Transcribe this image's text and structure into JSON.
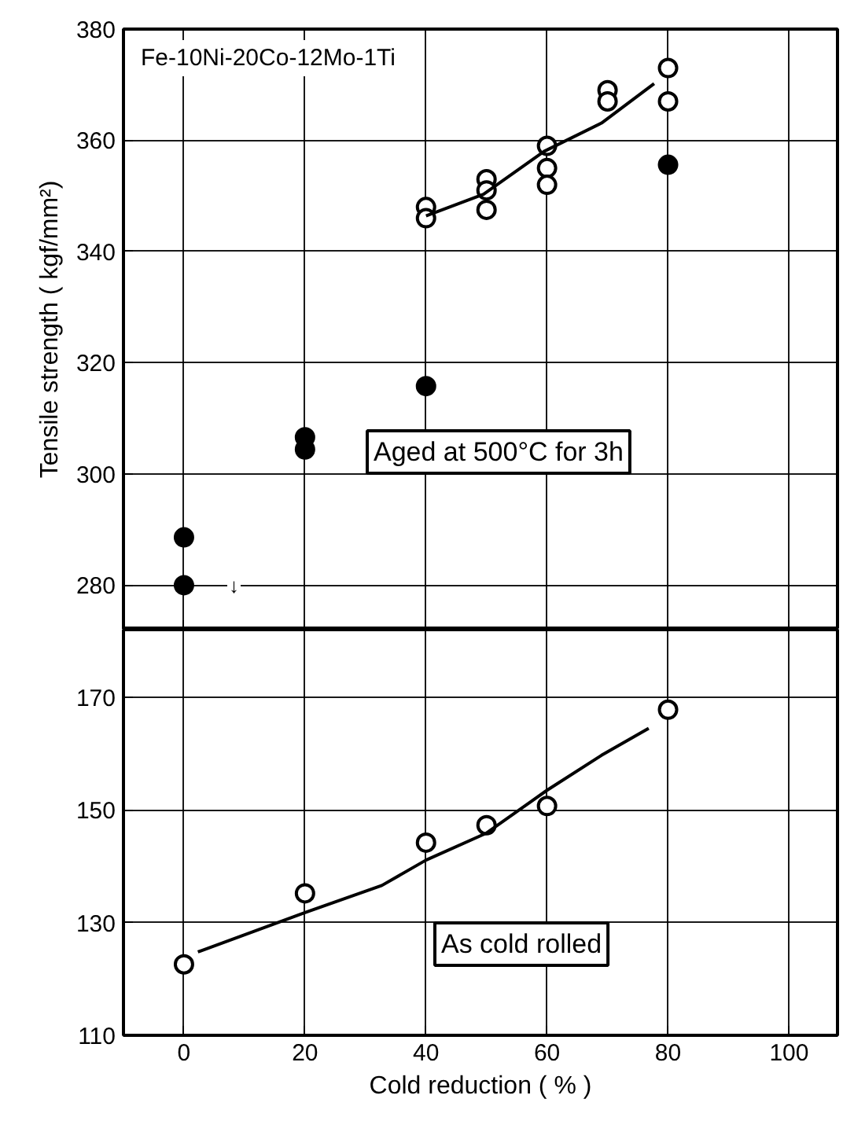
{
  "chart_data": [
    {
      "type": "scatter",
      "title": "Fe-10Ni-20Co-12Mo-1Ti",
      "ylabel": "Tensile strength ( kgf/mm²)",
      "xlim": [
        -10,
        108
      ],
      "xticks": [
        0,
        20,
        40,
        60,
        80,
        100
      ],
      "ylim": [
        272,
        380
      ],
      "yticks": [
        280,
        300,
        320,
        340,
        360,
        380
      ],
      "grid": true,
      "tick_labels": "y",
      "series": [
        {
          "color": "#ffffff",
          "marker": "circle",
          "x": [
            40,
            40,
            50,
            50,
            50,
            60,
            60,
            60,
            70,
            70,
            80,
            80
          ],
          "values": [
            348,
            346,
            353,
            351,
            347.5,
            359,
            355,
            352,
            369,
            367,
            373,
            367
          ]
        },
        {
          "color": "#000000",
          "marker": "circle",
          "x": [
            0,
            0,
            20,
            20,
            40,
            80
          ],
          "values": [
            288.6,
            280,
            306.6,
            304.4,
            315.8,
            355.6
          ]
        },
        {
          "type": "line",
          "marker": "none",
          "color": "#000000",
          "x": [
            40,
            49.5,
            59.5,
            69,
            77.7
          ],
          "values": [
            346.4,
            350.3,
            358,
            363.1,
            370.2
          ]
        }
      ],
      "annotations": [
        "Aged at 500°C for 3h",
        "↓"
      ]
    },
    {
      "type": "scatter",
      "xlabel": "Cold reduction ( % )",
      "xlim": [
        -10,
        108
      ],
      "xticks": [
        0,
        20,
        40,
        60,
        80,
        100
      ],
      "ylim": [
        110,
        182
      ],
      "yticks": [
        110,
        130,
        150,
        170
      ],
      "grid": true,
      "series": [
        {
          "color": "#ffffff",
          "marker": "circle",
          "x": [
            0,
            20,
            40,
            50,
            60,
            80
          ],
          "values": [
            122.6,
            135.2,
            144.2,
            147.3,
            150.7,
            167.8
          ]
        },
        {
          "type": "line",
          "marker": "none",
          "color": "#000000",
          "x": [
            2.3,
            20,
            32.7,
            40,
            50,
            60,
            69,
            76.8
          ],
          "values": [
            124.8,
            131.8,
            136.6,
            141.1,
            145.9,
            153.5,
            159.7,
            164.5
          ]
        }
      ],
      "annotations": [
        "As cold rolled"
      ]
    }
  ]
}
